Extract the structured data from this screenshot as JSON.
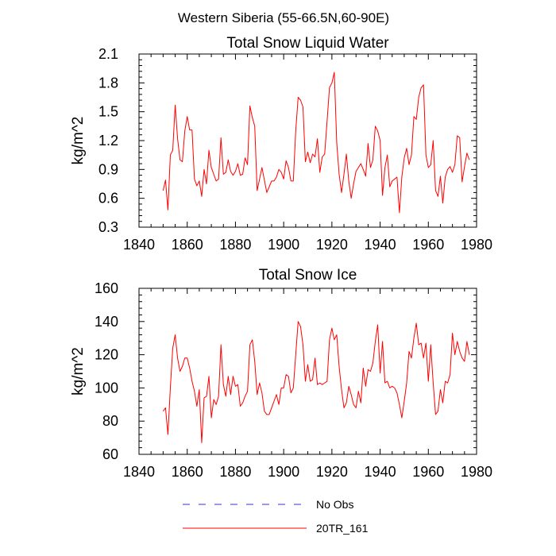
{
  "suptitle": "Western Siberia (55-66.5N,60-90E)",
  "colors": {
    "series": "#ff0000",
    "no_obs": "#3333cc",
    "axis": "#000000"
  },
  "legend": [
    {
      "label": "No Obs",
      "color": "#3333cc",
      "style": "dashed"
    },
    {
      "label": "20TR_161",
      "color": "#ff0000",
      "style": "solid"
    }
  ],
  "chart_data": [
    {
      "type": "line",
      "title": "Total Snow Liquid Water",
      "xlabel": "",
      "ylabel": "kg/m^2",
      "xlim": [
        1840,
        1980
      ],
      "ylim": [
        0.3,
        2.1
      ],
      "xticks": [
        1840,
        1860,
        1880,
        1900,
        1920,
        1940,
        1960,
        1980
      ],
      "yticks": [
        0.3,
        0.6,
        0.9,
        1.2,
        1.5,
        1.8,
        2.1
      ],
      "ytick_labels": [
        "0.3",
        "0.6",
        "0.9",
        "1.2",
        "1.5",
        "1.8",
        "2.1"
      ],
      "x_start": 1850,
      "series": [
        {
          "name": "20TR_161",
          "values": [
            0.68,
            0.79,
            0.48,
            1.05,
            1.1,
            1.57,
            1.22,
            1.0,
            0.98,
            1.3,
            1.45,
            1.31,
            1.31,
            0.8,
            0.73,
            0.78,
            0.62,
            0.9,
            0.75,
            1.1,
            0.92,
            0.85,
            0.78,
            0.8,
            1.23,
            0.85,
            0.87,
            1.0,
            0.88,
            0.84,
            0.88,
            0.96,
            0.84,
            0.85,
            1.02,
            0.95,
            1.56,
            1.44,
            1.35,
            0.68,
            0.8,
            0.92,
            0.79,
            0.66,
            0.72,
            0.78,
            0.78,
            0.82,
            0.9,
            0.87,
            0.8,
            0.99,
            0.92,
            0.78,
            0.78,
            1.3,
            1.65,
            1.62,
            1.55,
            0.98,
            1.08,
            0.97,
            1.06,
            1.03,
            1.22,
            0.87,
            1.03,
            1.06,
            1.4,
            1.75,
            1.8,
            1.91,
            1.18,
            0.85,
            0.66,
            0.85,
            1.06,
            0.78,
            0.6,
            0.75,
            0.88,
            0.92,
            0.96,
            0.9,
            0.83,
            1.17,
            0.92,
            1.0,
            1.35,
            1.3,
            1.2,
            0.63,
            0.92,
            1.05,
            0.72,
            0.78,
            0.8,
            0.82,
            0.45,
            0.82,
            1.02,
            1.12,
            0.95,
            1.05,
            1.45,
            1.42,
            1.65,
            1.75,
            1.78,
            1.05,
            0.92,
            0.95,
            1.2,
            0.68,
            0.62,
            0.83,
            0.55,
            0.82,
            0.9,
            0.93,
            0.87,
            0.95,
            1.25,
            1.23,
            0.77,
            0.93,
            1.07,
            1.0
          ]
        }
      ]
    },
    {
      "type": "line",
      "title": "Total Snow Ice",
      "xlabel": "",
      "ylabel": "kg/m^2",
      "xlim": [
        1840,
        1980
      ],
      "ylim": [
        60,
        160
      ],
      "xticks": [
        1840,
        1860,
        1880,
        1900,
        1920,
        1940,
        1960,
        1980
      ],
      "yticks": [
        60,
        80,
        100,
        120,
        140,
        160
      ],
      "ytick_labels": [
        "60",
        "80",
        "100",
        "120",
        "140",
        "160"
      ],
      "x_start": 1850,
      "series": [
        {
          "name": "20TR_161",
          "values": [
            86,
            88,
            72,
            100,
            124,
            132,
            118,
            110,
            113,
            118,
            118,
            112,
            104,
            98,
            89,
            99,
            67,
            94,
            95,
            107,
            82,
            93,
            90,
            95,
            126,
            102,
            95,
            107,
            96,
            107,
            101,
            102,
            89,
            91,
            95,
            98,
            126,
            129,
            116,
            96,
            103,
            97,
            86,
            84,
            84,
            88,
            92,
            96,
            90,
            100,
            100,
            108,
            107,
            97,
            100,
            120,
            140,
            137,
            126,
            104,
            114,
            104,
            105,
            118,
            102,
            103,
            102,
            103,
            104,
            129,
            136,
            129,
            132,
            113,
            99,
            88,
            91,
            101,
            96,
            90,
            88,
            98,
            91,
            112,
            101,
            111,
            110,
            115,
            128,
            138,
            109,
            128,
            103,
            104,
            100,
            101,
            100,
            97,
            90,
            82,
            92,
            103,
            122,
            118,
            130,
            139,
            126,
            127,
            118,
            127,
            104,
            126,
            103,
            84,
            86,
            99,
            91,
            104,
            103,
            108,
            133,
            120,
            128,
            122,
            118,
            116,
            128,
            120
          ]
        }
      ]
    }
  ]
}
